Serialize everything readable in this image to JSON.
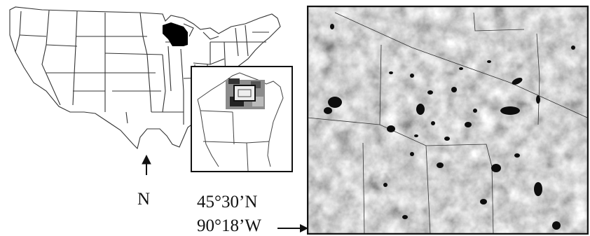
{
  "figure": {
    "north_label": "N",
    "latitude_label": "45°30’N",
    "longitude_label": "90°18’W"
  },
  "colors": {
    "state_lines": "#333333",
    "wisconsin_fill": "#000000",
    "lakes": "#0d0d0d",
    "raster_light": "#e6e6e6",
    "raster_dark": "#8c8c8c"
  },
  "map": {
    "highlighted_state": "Wisconsin",
    "inset_subject": "Wisconsin study area",
    "raster_subject": "land cover with lakes"
  }
}
